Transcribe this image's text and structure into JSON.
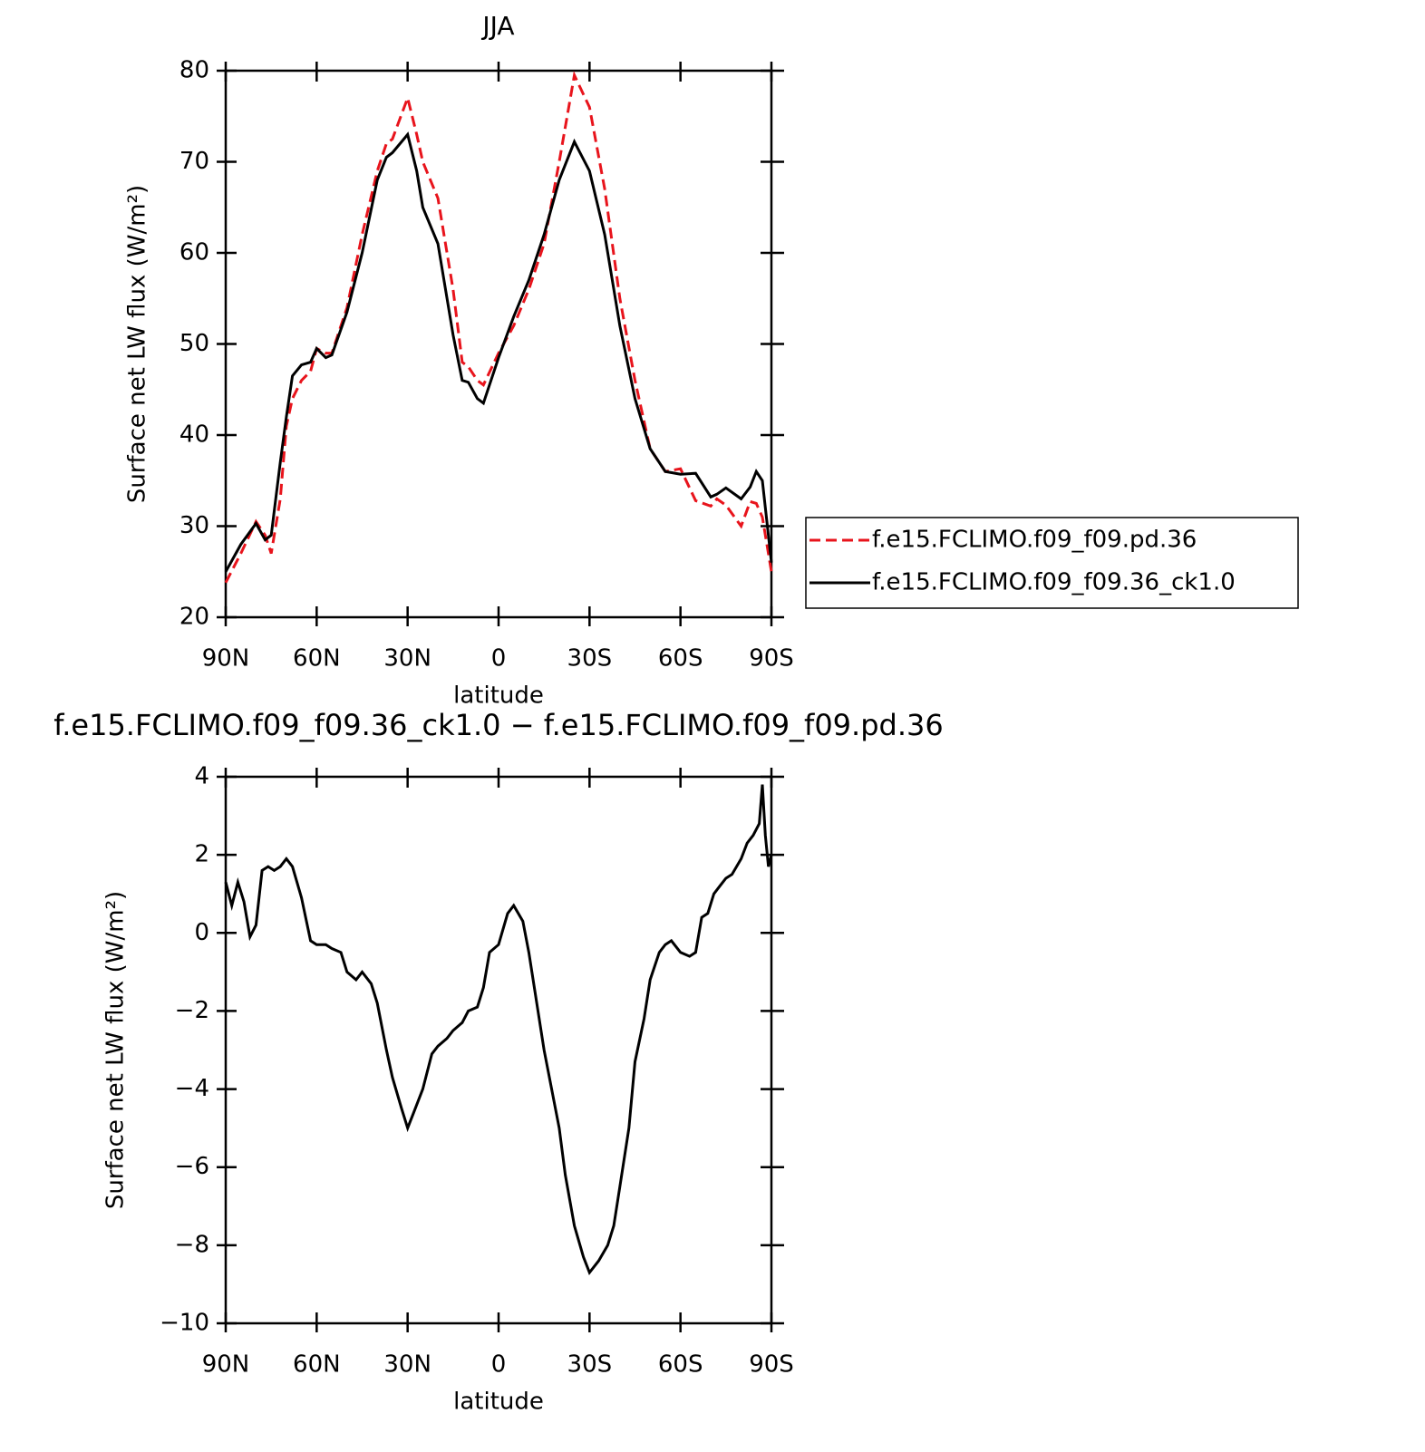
{
  "chart_data": [
    {
      "type": "line",
      "title": "JJA",
      "x_label": "latitude",
      "y_label": "Surface net LW flux (W/m²)",
      "x": [
        90,
        85,
        80,
        77,
        75,
        72,
        70,
        68,
        65,
        62,
        60,
        57,
        55,
        50,
        45,
        40,
        37,
        35,
        30,
        27,
        25,
        20,
        15,
        12,
        10,
        7,
        5,
        0,
        -5,
        -10,
        -15,
        -20,
        -25,
        -30,
        -35,
        -40,
        -45,
        -50,
        -55,
        -60,
        -65,
        -70,
        -72,
        -75,
        -80,
        -83,
        -85,
        -87,
        -90
      ],
      "series": [
        {
          "name": "f.e15.FCLIMO.f09_f09.pd.36",
          "color": "#e8141c",
          "linestyle": "dashed",
          "values": [
            23.8,
            27,
            30.5,
            29,
            27,
            33,
            41,
            44,
            46,
            47,
            49.5,
            49,
            49,
            54,
            62,
            69,
            72,
            72.5,
            77,
            73,
            70,
            66,
            56,
            48,
            47.5,
            46,
            45.5,
            49,
            52,
            56,
            61,
            70,
            79.5,
            76,
            67,
            55,
            46,
            38.5,
            36,
            36.3,
            32.8,
            32.2,
            33,
            32.3,
            30,
            32.7,
            32.5,
            31,
            25
          ]
        },
        {
          "name": "f.e15.FCLIMO.f09_f09.36_ck1.0",
          "color": "#000000",
          "linestyle": "solid",
          "values": [
            25,
            28,
            30.3,
            28.5,
            29,
            37,
            42,
            46.5,
            47.7,
            48,
            49.5,
            48.5,
            48.8,
            53.5,
            60,
            68,
            70.5,
            71,
            73,
            69,
            65,
            61,
            51,
            46,
            45.8,
            44,
            43.5,
            48.5,
            53,
            57,
            62,
            68,
            72.2,
            69,
            62,
            52,
            44,
            38.5,
            36,
            35.7,
            35.8,
            33.2,
            33.5,
            34.2,
            33,
            34.3,
            36,
            35,
            26
          ]
        }
      ],
      "xlim": [
        90,
        -90
      ],
      "xticks": [
        {
          "value": 90,
          "label": "90N"
        },
        {
          "value": 60,
          "label": "60N"
        },
        {
          "value": 30,
          "label": "30N"
        },
        0,
        {
          "value": -30,
          "label": "30S"
        },
        {
          "value": -60,
          "label": "60S"
        },
        {
          "value": -90,
          "label": "90S"
        }
      ],
      "ylim": [
        20,
        80
      ],
      "yticks": [
        20,
        30,
        40,
        50,
        60,
        70,
        80
      ],
      "legend": "right"
    },
    {
      "type": "line",
      "title": "f.e15.FCLIMO.f09_f09.36_ck1.0 − f.e15.FCLIMO.f09_f09.pd.36",
      "x_label": "latitude",
      "y_label": "Surface net LW flux (W/m²)",
      "x": [
        90,
        88,
        86,
        84,
        82,
        80,
        78,
        76,
        74,
        72,
        70,
        68,
        65,
        62,
        60,
        57,
        55,
        52,
        50,
        47,
        45,
        42,
        40,
        37,
        35,
        32,
        30,
        28,
        25,
        22,
        20,
        17,
        15,
        12,
        10,
        7,
        5,
        3,
        0,
        -3,
        -5,
        -8,
        -10,
        -15,
        -20,
        -22,
        -25,
        -28,
        -30,
        -33,
        -36,
        -38,
        -40,
        -43,
        -45,
        -48,
        -50,
        -53,
        -55,
        -57,
        -60,
        -63,
        -65,
        -67,
        -69,
        -71,
        -73,
        -75,
        -77,
        -80,
        -82,
        -84,
        -86,
        -87,
        -88,
        -89,
        -90
      ],
      "series": [
        {
          "color": "#000000",
          "linestyle": "solid",
          "values": [
            1.3,
            0.7,
            1.3,
            0.8,
            -0.1,
            0.2,
            1.6,
            1.7,
            1.6,
            1.7,
            1.9,
            1.7,
            0.9,
            -0.2,
            -0.3,
            -0.3,
            -0.4,
            -0.5,
            -1.0,
            -1.2,
            -1.0,
            -1.3,
            -1.8,
            -3.0,
            -3.7,
            -4.5,
            -5.0,
            -4.6,
            -4.0,
            -3.1,
            -2.9,
            -2.7,
            -2.5,
            -2.3,
            -2.0,
            -1.9,
            -1.4,
            -0.5,
            -0.3,
            0.5,
            0.7,
            0.3,
            -0.5,
            -3.0,
            -5.0,
            -6.2,
            -7.5,
            -8.3,
            -8.7,
            -8.4,
            -8.0,
            -7.5,
            -6.5,
            -5.0,
            -3.3,
            -2.2,
            -1.2,
            -0.5,
            -0.3,
            -0.2,
            -0.5,
            -0.6,
            -0.5,
            0.4,
            0.5,
            1.0,
            1.2,
            1.4,
            1.5,
            1.9,
            2.3,
            2.5,
            2.8,
            3.8,
            2.5,
            1.7,
            2.0
          ]
        }
      ],
      "xlim": [
        90,
        -90
      ],
      "xticks": [
        {
          "value": 90,
          "label": "90N"
        },
        {
          "value": 60,
          "label": "60N"
        },
        {
          "value": 30,
          "label": "30N"
        },
        0,
        {
          "value": -30,
          "label": "30S"
        },
        {
          "value": -60,
          "label": "60S"
        },
        {
          "value": -90,
          "label": "90S"
        }
      ],
      "ylim": [
        -10,
        4
      ],
      "yticks": [
        {
          "value": -10,
          "label": "−10"
        },
        {
          "value": -8,
          "label": "−8"
        },
        {
          "value": -6,
          "label": "−6"
        },
        {
          "value": -4,
          "label": "−4"
        },
        {
          "value": -2,
          "label": "−2"
        },
        0,
        2,
        4
      ]
    }
  ]
}
